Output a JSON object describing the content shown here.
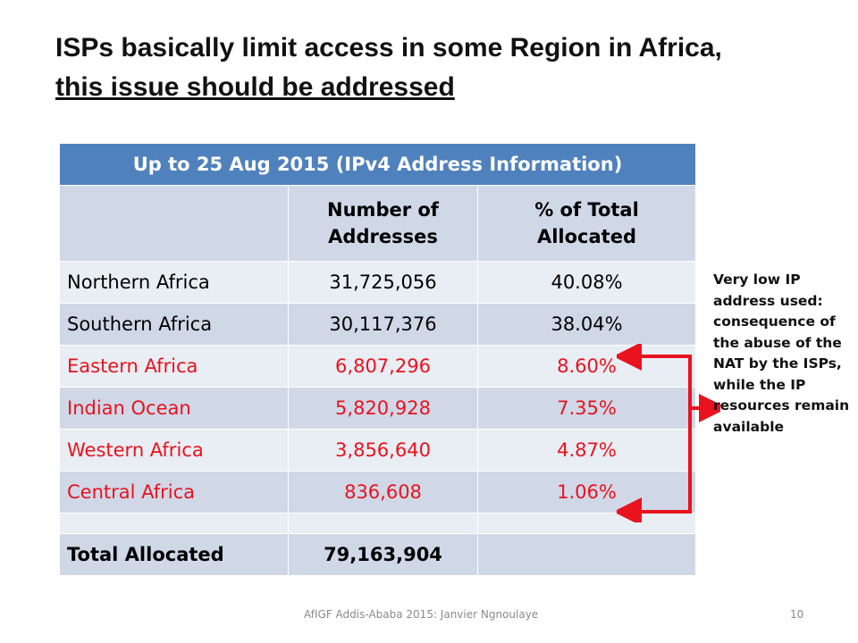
{
  "slide": {
    "title_line1": "ISPs basically limit access in some Region in Africa,",
    "title_line2": "this issue should be addressed",
    "footer": "AfIGF Addis-Ababa 2015: Janvier Ngnoulaye",
    "page_number": "10"
  },
  "table": {
    "banner": "Up to 25 Aug 2015 (IPv4 Address Information)",
    "columns": [
      "",
      "Number of Addresses",
      "% of Total Allocated"
    ],
    "rows": [
      {
        "region": "Northern Africa",
        "addresses": "31,725,056",
        "percent": "40.08%"
      },
      {
        "region": "Southern Africa",
        "addresses": "30,117,376",
        "percent": "38.04%"
      },
      {
        "region": "Eastern Africa",
        "addresses": "6,807,296",
        "percent": "8.60%"
      },
      {
        "region": "Indian Ocean",
        "addresses": "5,820,928",
        "percent": "7.35%"
      },
      {
        "region": "Western Africa",
        "addresses": "3,856,640",
        "percent": "4.87%"
      },
      {
        "region": "Central Africa",
        "addresses": "836,608",
        "percent": "1.06%"
      }
    ],
    "total": {
      "label": "Total Allocated",
      "addresses": "79,163,904",
      "percent": ""
    }
  },
  "annotation": {
    "text": "Very low IP address used: consequence of the abuse of the NAT by the ISPs, while the IP resources remain available"
  },
  "colors": {
    "banner": "#4f81bd",
    "row_dark": "#d0d8e8",
    "row_light": "#e9edf4",
    "highlight_red": "#e8131e"
  }
}
